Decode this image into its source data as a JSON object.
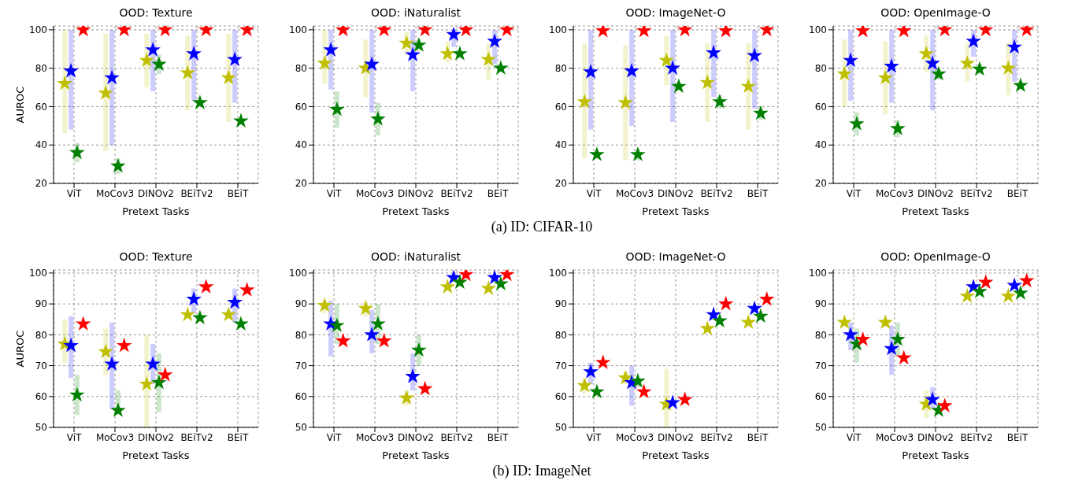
{
  "chart_data": [
    {
      "type": "scatter",
      "title": "OOD: Texture",
      "xlabel": "Pretext Tasks",
      "ylabel": "AUROC",
      "categories": [
        "ViT",
        "MoCov3",
        "DINOv2",
        "BEiTv2",
        "BEiT"
      ],
      "ylim": [
        20,
        102
      ],
      "yticks": [
        20,
        40,
        60,
        80,
        100
      ],
      "grid": true,
      "marker": "star",
      "annotations": [
        "(a) ID: CIFAR-10"
      ],
      "series": [
        {
          "color": "#bfbf00",
          "values": [
            72,
            67,
            84,
            77.5,
            75
          ],
          "errors": [
            [
              46,
              100
            ],
            [
              37,
              98
            ],
            [
              70,
              98
            ],
            [
              58,
              97
            ],
            [
              52,
              98
            ]
          ]
        },
        {
          "color": "#0000ff",
          "values": [
            78.5,
            75,
            89.5,
            87.5,
            84.5
          ],
          "errors": [
            [
              48,
              100
            ],
            [
              40,
              100
            ],
            [
              68,
              100
            ],
            [
              63,
              100
            ],
            [
              62,
              100
            ]
          ]
        },
        {
          "color": "#008000",
          "values": [
            36,
            29,
            82,
            62,
            52.5
          ],
          "errors": [
            [
              31,
              41
            ],
            [
              25,
              33
            ],
            [
              77,
              87
            ],
            null,
            null
          ]
        },
        {
          "color": "#ff0000",
          "values": [
            100,
            100,
            100,
            100,
            100
          ]
        }
      ]
    },
    {
      "type": "scatter",
      "title": "OOD: iNaturalist",
      "xlabel": "Pretext Tasks",
      "categories": [
        "ViT",
        "MoCov3",
        "DINOv2",
        "BEiTv2",
        "BEiT"
      ],
      "ylim": [
        20,
        102
      ],
      "yticks": [
        20,
        40,
        60,
        80,
        100
      ],
      "grid": true,
      "marker": "star",
      "series": [
        {
          "color": "#bfbf00",
          "values": [
            82.5,
            80,
            93,
            87.5,
            84.5
          ],
          "errors": [
            [
              72,
              100
            ],
            [
              65,
              95
            ],
            [
              87,
              99
            ],
            [
              83,
              94
            ],
            [
              74,
              93
            ]
          ]
        },
        {
          "color": "#0000ff",
          "values": [
            89.5,
            82,
            87,
            97.5,
            94
          ],
          "errors": [
            [
              69,
              100
            ],
            [
              57,
              100
            ],
            [
              68,
              100
            ],
            [
              91,
              100
            ],
            [
              82,
              100
            ]
          ]
        },
        {
          "color": "#008000",
          "values": [
            58.5,
            53.5,
            92,
            87.5,
            80
          ],
          "errors": [
            [
              49,
              68
            ],
            [
              45,
              62
            ],
            [
              89,
              95
            ],
            [
              86,
              89
            ],
            [
              78,
              82
            ]
          ]
        },
        {
          "color": "#ff0000",
          "values": [
            100,
            100,
            100,
            100,
            100
          ]
        }
      ]
    },
    {
      "type": "scatter",
      "title": "OOD: ImageNet-O",
      "xlabel": "Pretext Tasks",
      "categories": [
        "ViT",
        "MoCov3",
        "DINOv2",
        "BEiTv2",
        "BEiT"
      ],
      "ylim": [
        20,
        102
      ],
      "yticks": [
        20,
        40,
        60,
        80,
        100
      ],
      "grid": true,
      "marker": "star",
      "series": [
        {
          "color": "#bfbf00",
          "values": [
            62.5,
            62,
            84,
            72.5,
            70.5
          ],
          "errors": [
            [
              33,
              93
            ],
            [
              32,
              92
            ],
            [
              71,
              97
            ],
            [
              52,
              93
            ],
            [
              48,
              93
            ]
          ]
        },
        {
          "color": "#0000ff",
          "values": [
            78,
            78.5,
            80,
            88,
            86.5
          ],
          "errors": [
            [
              48,
              100
            ],
            [
              50,
              100
            ],
            [
              52,
              100
            ],
            [
              65,
              100
            ],
            [
              59,
              100
            ]
          ]
        },
        {
          "color": "#008000",
          "values": [
            35,
            35,
            70.5,
            62.5,
            56.5
          ],
          "errors": [
            [
              33,
              37
            ],
            [
              32,
              38
            ],
            [
              69,
              73
            ],
            [
              59,
              66
            ],
            [
              53,
              60
            ]
          ]
        },
        {
          "color": "#ff0000",
          "values": [
            99.5,
            99.5,
            100,
            99.5,
            100
          ]
        }
      ]
    },
    {
      "type": "scatter",
      "title": "OOD: OpenImage-O",
      "xlabel": "Pretext Tasks",
      "categories": [
        "ViT",
        "MoCov3",
        "DINOv2",
        "BEiTv2",
        "BEiT"
      ],
      "ylim": [
        20,
        102
      ],
      "yticks": [
        20,
        40,
        60,
        80,
        100
      ],
      "grid": true,
      "marker": "star",
      "series": [
        {
          "color": "#bfbf00",
          "values": [
            77,
            75,
            87.5,
            82.5,
            80
          ],
          "errors": [
            [
              60,
              95
            ],
            [
              56,
              94
            ],
            [
              78,
              97
            ],
            [
              73,
              93
            ],
            [
              66,
              93
            ]
          ]
        },
        {
          "color": "#0000ff",
          "values": [
            84,
            81,
            82.5,
            94,
            91
          ],
          "errors": [
            [
              63,
              100
            ],
            [
              62,
              100
            ],
            [
              58,
              100
            ],
            [
              86,
              100
            ],
            [
              73,
              100
            ]
          ]
        },
        {
          "color": "#008000",
          "values": [
            51,
            48.5,
            77,
            79.5,
            71
          ],
          "errors": [
            [
              45,
              57
            ],
            [
              44,
              53
            ],
            [
              74,
              80
            ],
            [
              77,
              82
            ],
            [
              70,
              73
            ]
          ]
        },
        {
          "color": "#ff0000",
          "values": [
            99.5,
            99.5,
            100,
            100,
            100
          ]
        }
      ]
    },
    {
      "type": "scatter",
      "title": "OOD: Texture",
      "xlabel": "Pretext Tasks",
      "ylabel": "AUROC",
      "categories": [
        "ViT",
        "MoCov3",
        "DINOv2",
        "BEiTv2",
        "BEiT"
      ],
      "ylim": [
        50,
        101
      ],
      "yticks": [
        50,
        60,
        70,
        80,
        90,
        100
      ],
      "grid": true,
      "marker": "star",
      "annotations": [
        "(b) ID: ImageNet"
      ],
      "series": [
        {
          "color": "#bfbf00",
          "values": [
            77,
            74.5,
            64,
            86.5,
            86.5
          ],
          "errors": [
            [
              71,
              85
            ],
            [
              67,
              82
            ],
            [
              50,
              80
            ],
            null,
            [
              85,
              88
            ]
          ]
        },
        {
          "color": "#0000ff",
          "values": [
            76.5,
            70.5,
            70.5,
            91.5,
            90.5
          ],
          "errors": [
            [
              66,
              86
            ],
            [
              56,
              84
            ],
            [
              64,
              77
            ],
            [
              87,
              95
            ],
            [
              84,
              95
            ]
          ]
        },
        {
          "color": "#008000",
          "values": [
            60.5,
            55.5,
            64.5,
            85.5,
            83.5
          ],
          "errors": [
            [
              54,
              67
            ],
            [
              55,
              62
            ],
            [
              55,
              74
            ],
            null,
            null
          ]
        },
        {
          "color": "#ff0000",
          "values": [
            83.5,
            76.5,
            67,
            95.5,
            94.5
          ]
        }
      ]
    },
    {
      "type": "scatter",
      "title": "OOD: iNaturalist",
      "xlabel": "Pretext Tasks",
      "categories": [
        "ViT",
        "MoCov3",
        "DINOv2",
        "BEiTv2",
        "BEiT"
      ],
      "ylim": [
        50,
        101
      ],
      "yticks": [
        50,
        60,
        70,
        80,
        90,
        100
      ],
      "grid": true,
      "marker": "star",
      "series": [
        {
          "color": "#bfbf00",
          "values": [
            89.5,
            88.5,
            59.5,
            95.5,
            95
          ],
          "errors": [
            [
              87,
              91
            ],
            [
              86,
              91
            ],
            [
              57,
              62
            ],
            null,
            null
          ]
        },
        {
          "color": "#0000ff",
          "values": [
            83.5,
            80,
            66.5,
            98.5,
            98.5
          ],
          "errors": [
            [
              73,
              91
            ],
            [
              74,
              88
            ],
            [
              62,
              74
            ],
            null,
            null
          ]
        },
        {
          "color": "#008000",
          "values": [
            83,
            83.5,
            75,
            97,
            96.5
          ],
          "errors": [
            [
              77,
              90
            ],
            [
              77,
              90
            ],
            [
              70,
              80
            ],
            null,
            null
          ]
        },
        {
          "color": "#ff0000",
          "values": [
            78,
            78,
            62.5,
            99.5,
            99.5
          ]
        }
      ]
    },
    {
      "type": "scatter",
      "title": "OOD: ImageNet-O",
      "xlabel": "Pretext Tasks",
      "categories": [
        "ViT",
        "MoCov3",
        "DINOv2",
        "BEiTv2",
        "BEiT"
      ],
      "ylim": [
        50,
        101
      ],
      "yticks": [
        50,
        60,
        70,
        80,
        90,
        100
      ],
      "grid": true,
      "marker": "star",
      "series": [
        {
          "color": "#bfbf00",
          "values": [
            63.5,
            66,
            57.5,
            82,
            84
          ],
          "errors": [
            [
              61,
              66
            ],
            [
              64,
              68
            ],
            [
              50,
              69
            ],
            null,
            null
          ]
        },
        {
          "color": "#0000ff",
          "values": [
            68,
            64.5,
            58,
            86.5,
            88.5
          ],
          "errors": [
            [
              64,
              71
            ],
            [
              57,
              70
            ],
            null,
            null,
            null
          ]
        },
        {
          "color": "#008000",
          "values": [
            61.5,
            65,
            null,
            84.5,
            86
          ],
          "errors": [
            null,
            [
              63,
              66
            ],
            null,
            null,
            null
          ]
        },
        {
          "color": "#ff0000",
          "values": [
            71,
            61.5,
            59,
            90,
            91.5
          ]
        }
      ]
    },
    {
      "type": "scatter",
      "title": "OOD: OpenImage-O",
      "xlabel": "Pretext Tasks",
      "categories": [
        "ViT",
        "MoCov3",
        "DINOv2",
        "BEiTv2",
        "BEiT"
      ],
      "ylim": [
        50,
        101
      ],
      "yticks": [
        50,
        60,
        70,
        80,
        90,
        100
      ],
      "grid": true,
      "marker": "star",
      "series": [
        {
          "color": "#bfbf00",
          "values": [
            84,
            84,
            57.5,
            92.5,
            92.5
          ],
          "errors": [
            null,
            null,
            [
              53,
              62
            ],
            null,
            null
          ]
        },
        {
          "color": "#0000ff",
          "values": [
            80,
            75.5,
            59,
            95.5,
            96
          ],
          "errors": [
            [
              75,
              84
            ],
            [
              67,
              83
            ],
            [
              56,
              63
            ],
            null,
            null
          ]
        },
        {
          "color": "#008000",
          "values": [
            77,
            78.5,
            55.5,
            94,
            93.5
          ],
          "errors": [
            [
              71,
              82
            ],
            [
              73,
              84
            ],
            null,
            null,
            null
          ]
        },
        {
          "color": "#ff0000",
          "values": [
            78.5,
            72.5,
            57,
            97,
            97.5
          ]
        }
      ]
    }
  ]
}
